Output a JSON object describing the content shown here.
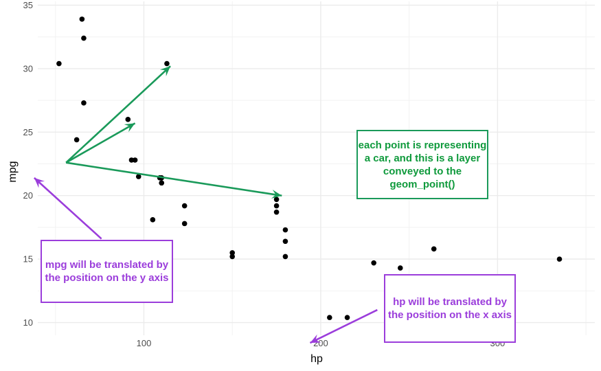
{
  "chart_data": {
    "type": "scatter",
    "xlabel": "hp",
    "ylabel": "mpg",
    "xlim": [
      40,
      355
    ],
    "ylim": [
      9,
      35.3
    ],
    "x_ticks": [
      100,
      200,
      300
    ],
    "x_tick_labels": [
      "100",
      "200",
      "300"
    ],
    "y_ticks": [
      10,
      15,
      20,
      25,
      30,
      35
    ],
    "y_tick_labels": [
      "10",
      "15",
      "20",
      "25",
      "30",
      "35"
    ],
    "grid": true,
    "series": [
      {
        "color": "#000000",
        "points": [
          [
            110,
            21.0
          ],
          [
            110,
            21.0
          ],
          [
            93,
            22.8
          ],
          [
            110,
            21.4
          ],
          [
            175,
            18.7
          ],
          [
            105,
            18.1
          ],
          [
            245,
            14.3
          ],
          [
            62,
            24.4
          ],
          [
            95,
            22.8
          ],
          [
            123,
            19.2
          ],
          [
            123,
            17.8
          ],
          [
            180,
            16.4
          ],
          [
            180,
            17.3
          ],
          [
            180,
            15.2
          ],
          [
            205,
            10.4
          ],
          [
            215,
            10.4
          ],
          [
            230,
            14.7
          ],
          [
            66,
            32.4
          ],
          [
            52,
            30.4
          ],
          [
            65,
            33.9
          ],
          [
            97,
            21.5
          ],
          [
            150,
            15.5
          ],
          [
            150,
            15.2
          ],
          [
            245,
            13.3
          ],
          [
            175,
            19.2
          ],
          [
            66,
            27.3
          ],
          [
            91,
            26.0
          ],
          [
            113,
            30.4
          ],
          [
            264,
            15.8
          ],
          [
            175,
            19.7
          ],
          [
            335,
            15.0
          ],
          [
            109,
            21.4
          ]
        ]
      }
    ],
    "annotations": [
      {
        "text": "each point is representing a car, and this is a layer conveyed to the geom_point()",
        "color": "#1a9a5a",
        "origin": [
          56,
          22.6
        ],
        "arrows_to": [
          [
            115,
            30.2
          ],
          [
            95,
            25.7
          ],
          [
            178,
            20.0
          ]
        ]
      },
      {
        "text": "mpg will be translated by the position on the y axis",
        "color": "#9b3ddb",
        "origin": [
          76,
          16.6
        ],
        "arrows_to": [
          [
            38,
            21.4
          ]
        ]
      },
      {
        "text": "hp will be translated by the position on the x axis",
        "color": "#9b3ddb",
        "origin": [
          232,
          11.0
        ],
        "arrows_to": [
          [
            194,
            8.4
          ]
        ]
      }
    ]
  }
}
